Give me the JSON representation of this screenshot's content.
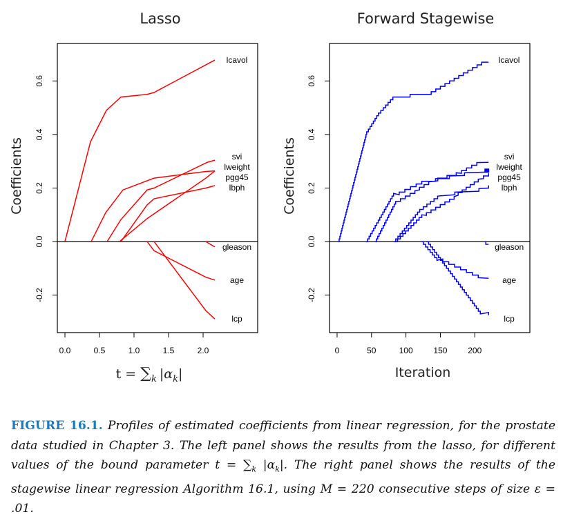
{
  "chart_data": [
    {
      "type": "line",
      "title": "Lasso",
      "xlabel": "t = ∑_k |α_k|",
      "xlabel_parts": {
        "prefix": "t = ",
        "sum": "∑",
        "sub": "k",
        "body": "|α",
        "body_sub": "k",
        "suffix": "|"
      },
      "ylabel": "Coefficients",
      "xlim": [
        -0.11,
        2.79
      ],
      "ylim": [
        -0.34,
        0.74
      ],
      "xticks": [
        0.0,
        0.5,
        1.0,
        1.5,
        2.0
      ],
      "xtick_labels": [
        "0.0",
        "0.5",
        "1.0",
        "1.5",
        "2.0"
      ],
      "yticks": [
        -0.2,
        0.0,
        0.2,
        0.4,
        0.6
      ],
      "ytick_labels": [
        "-0.2",
        "0.0",
        "0.2",
        "0.4",
        "0.6"
      ],
      "hline": 0,
      "color": "#ff0000",
      "series": [
        {
          "name": "lcavol",
          "points": [
            [
              0.0,
              0.0
            ],
            [
              0.37,
              0.373
            ],
            [
              0.6,
              0.49
            ],
            [
              0.81,
              0.54
            ],
            [
              1.19,
              0.55
            ],
            [
              1.29,
              0.557
            ],
            [
              2.17,
              0.678
            ]
          ]
        },
        {
          "name": "svi",
          "points": [
            [
              0.61,
              0.0
            ],
            [
              0.81,
              0.082
            ],
            [
              1.19,
              0.193
            ],
            [
              1.29,
              0.2
            ],
            [
              2.06,
              0.296
            ],
            [
              2.17,
              0.304
            ]
          ]
        },
        {
          "name": "lweight",
          "points": [
            [
              0.38,
              0.0
            ],
            [
              0.59,
              0.108
            ],
            [
              0.84,
              0.193
            ],
            [
              1.29,
              0.237
            ],
            [
              2.04,
              0.262
            ],
            [
              2.17,
              0.264
            ]
          ]
        },
        {
          "name": "pgg45",
          "points": [
            [
              0.79,
              0.0
            ],
            [
              1.19,
              0.086
            ],
            [
              2.04,
              0.237
            ],
            [
              2.17,
              0.264
            ]
          ]
        },
        {
          "name": "lbph",
          "points": [
            [
              0.81,
              0.0
            ],
            [
              1.19,
              0.137
            ],
            [
              1.29,
              0.16
            ],
            [
              2.04,
              0.2
            ],
            [
              2.17,
              0.209
            ]
          ]
        },
        {
          "name": "gleason",
          "points": [
            [
              2.04,
              0.0
            ],
            [
              2.17,
              -0.02
            ]
          ]
        },
        {
          "name": "age",
          "points": [
            [
              1.19,
              0.0
            ],
            [
              1.29,
              -0.034
            ],
            [
              2.04,
              -0.133
            ],
            [
              2.17,
              -0.144
            ]
          ]
        },
        {
          "name": "lcp",
          "points": [
            [
              1.29,
              0.0
            ],
            [
              2.04,
              -0.258
            ],
            [
              2.17,
              -0.289
            ]
          ]
        }
      ],
      "labels": [
        {
          "name": "lcavol",
          "at": [
            2.49,
            0.678
          ]
        },
        {
          "name": "svi",
          "at": [
            2.49,
            0.301
          ]
        },
        {
          "name": "lweight",
          "at": [
            2.49,
            0.274
          ]
        },
        {
          "name": "pgg45",
          "at": [
            2.49,
            0.253
          ]
        },
        {
          "name": "lbph",
          "at": [
            2.49,
            0.209
          ]
        },
        {
          "name": "gleason",
          "at": [
            2.49,
            -0.02
          ]
        },
        {
          "name": "age",
          "at": [
            2.49,
            -0.144
          ]
        },
        {
          "name": "lcp",
          "at": [
            2.49,
            -0.289
          ]
        }
      ]
    },
    {
      "type": "line",
      "title": "Forward Stagewise",
      "xlabel": "Iteration",
      "ylabel": "Coefficients",
      "xlim": [
        -11,
        280
      ],
      "ylim": [
        -0.34,
        0.74
      ],
      "xticks": [
        0,
        50,
        100,
        150,
        200
      ],
      "xtick_labels": [
        "0",
        "50",
        "100",
        "150",
        "200"
      ],
      "yticks": [
        -0.2,
        0.0,
        0.2,
        0.4,
        0.6
      ],
      "ytick_labels": [
        "-0.2",
        "0.0",
        "0.2",
        "0.4",
        "0.6"
      ],
      "hline": 0,
      "color": "#0000ff",
      "step_size": 0.01,
      "series": [
        {
          "name": "lcavol",
          "points": [
            [
              2,
              0.0
            ],
            [
              43,
              0.41
            ],
            [
              60,
              0.48
            ],
            [
              81,
              0.54
            ],
            [
              105,
              0.54
            ],
            [
              106,
              0.55
            ],
            [
              130,
              0.55
            ],
            [
              210,
              0.67
            ],
            [
              220,
              0.67
            ]
          ]
        },
        {
          "name": "svi",
          "points": [
            [
              55,
              0.0
            ],
            [
              85,
              0.15
            ],
            [
              113,
              0.193
            ],
            [
              133,
              0.227
            ],
            [
              173,
              0.255
            ],
            [
              203,
              0.296
            ],
            [
              220,
              0.3
            ]
          ]
        },
        {
          "name": "lweight",
          "points": [
            [
              42,
              0.0
            ],
            [
              82,
              0.175
            ],
            [
              123,
              0.225
            ],
            [
              163,
              0.247
            ],
            [
              185,
              0.26
            ],
            [
              220,
              0.265
            ]
          ]
        },
        {
          "name": "pgg45",
          "points": [
            [
              84,
              0.0
            ],
            [
              123,
              0.098
            ],
            [
              170,
              0.173
            ],
            [
              205,
              0.235
            ],
            [
              220,
              0.25
            ]
          ]
        },
        {
          "name": "lbph",
          "points": [
            [
              82,
              0.0
            ],
            [
              120,
              0.12
            ],
            [
              146,
              0.175
            ],
            [
              171,
              0.188
            ],
            [
              206,
              0.2
            ],
            [
              220,
              0.21
            ]
          ]
        },
        {
          "name": "gleason",
          "points": [
            [
              215,
              0.0
            ],
            [
              216,
              -0.01
            ],
            [
              220,
              -0.01
            ]
          ]
        },
        {
          "name": "age",
          "points": [
            [
              122,
              0.0
            ],
            [
              145,
              -0.065
            ],
            [
              205,
              -0.137
            ],
            [
              220,
              -0.14
            ]
          ]
        },
        {
          "name": "lcp",
          "points": [
            [
              130,
              0.0
            ],
            [
              208,
              -0.265
            ],
            [
              220,
              -0.27
            ]
          ]
        }
      ],
      "marker": {
        "series": "lweight",
        "at": [
          217,
          0.265
        ]
      },
      "labels": [
        {
          "name": "lcavol",
          "at": [
            250,
            0.678
          ]
        },
        {
          "name": "svi",
          "at": [
            250,
            0.301
          ]
        },
        {
          "name": "lweight",
          "at": [
            250,
            0.274
          ]
        },
        {
          "name": "pgg45",
          "at": [
            250,
            0.253
          ]
        },
        {
          "name": "lbph",
          "at": [
            250,
            0.209
          ]
        },
        {
          "name": "gleason",
          "at": [
            250,
            -0.02
          ]
        },
        {
          "name": "age",
          "at": [
            250,
            -0.144
          ]
        },
        {
          "name": "lcp",
          "at": [
            250,
            -0.289
          ]
        }
      ]
    }
  ],
  "caption": {
    "label": "FIGURE 16.1.",
    "text": "Profiles of estimated coefficients from linear regression, for the prostate data studied in Chapter 3. The left panel shows the results from the lasso, for different values of the bound parameter t = ∑",
    "sub_k": "k",
    "abs_alpha": " |α",
    "abs_close": "|. The right panel shows the results of the stagewise linear regression Algorithm 16.1, using M = 220 consecutive steps of size ε = .01."
  }
}
